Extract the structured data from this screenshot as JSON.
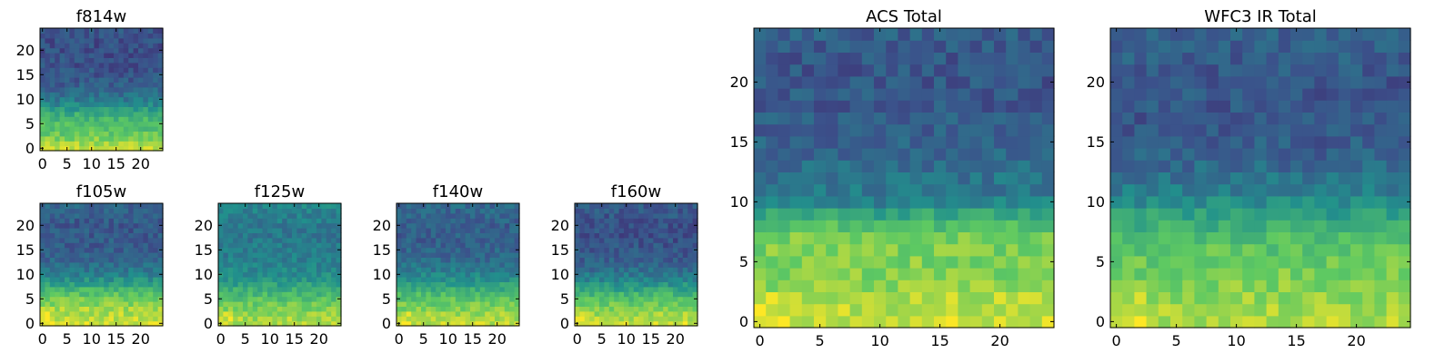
{
  "colormap": {
    "name": "viridis",
    "stops": [
      "#440154",
      "#3b528b",
      "#21918c",
      "#5ec962",
      "#fde725"
    ]
  },
  "chart_data": [
    {
      "type": "heatmap",
      "id": "f814w",
      "title": "f814w",
      "size": 25,
      "xticks": [
        0,
        5,
        10,
        15,
        20
      ],
      "yticks": [
        0,
        5,
        10,
        15,
        20
      ],
      "profile": [
        0.92,
        0.86,
        0.8,
        0.75,
        0.72,
        0.7,
        0.66,
        0.62,
        0.55,
        0.46,
        0.4,
        0.36,
        0.33,
        0.3,
        0.28,
        0.27,
        0.26,
        0.25,
        0.25,
        0.24,
        0.24,
        0.24,
        0.24,
        0.25,
        0.26
      ],
      "seed": 11
    },
    {
      "type": "heatmap",
      "id": "f105w",
      "title": "f105w",
      "size": 25,
      "xticks": [
        0,
        5,
        10,
        15,
        20
      ],
      "yticks": [
        0,
        5,
        10,
        15,
        20
      ],
      "profile": [
        0.93,
        0.9,
        0.88,
        0.86,
        0.82,
        0.78,
        0.72,
        0.66,
        0.58,
        0.5,
        0.44,
        0.4,
        0.36,
        0.33,
        0.31,
        0.3,
        0.29,
        0.29,
        0.28,
        0.28,
        0.28,
        0.29,
        0.3,
        0.31,
        0.32
      ],
      "seed": 23
    },
    {
      "type": "heatmap",
      "id": "f125w",
      "title": "f125w",
      "size": 25,
      "xticks": [
        0,
        5,
        10,
        15,
        20
      ],
      "yticks": [
        0,
        5,
        10,
        15,
        20
      ],
      "profile": [
        0.88,
        0.86,
        0.83,
        0.8,
        0.76,
        0.72,
        0.67,
        0.62,
        0.56,
        0.52,
        0.48,
        0.46,
        0.44,
        0.43,
        0.42,
        0.41,
        0.41,
        0.4,
        0.4,
        0.4,
        0.41,
        0.42,
        0.43,
        0.44,
        0.45
      ],
      "seed": 37
    },
    {
      "type": "heatmap",
      "id": "f140w",
      "title": "f140w",
      "size": 25,
      "xticks": [
        0,
        5,
        10,
        15,
        20
      ],
      "yticks": [
        0,
        5,
        10,
        15,
        20
      ],
      "profile": [
        0.9,
        0.87,
        0.84,
        0.81,
        0.77,
        0.73,
        0.68,
        0.62,
        0.56,
        0.5,
        0.45,
        0.41,
        0.38,
        0.35,
        0.33,
        0.32,
        0.31,
        0.3,
        0.3,
        0.3,
        0.3,
        0.31,
        0.32,
        0.33,
        0.34
      ],
      "seed": 41
    },
    {
      "type": "heatmap",
      "id": "f160w",
      "title": "f160w",
      "size": 25,
      "xticks": [
        0,
        5,
        10,
        15,
        20
      ],
      "yticks": [
        0,
        5,
        10,
        15,
        20
      ],
      "profile": [
        0.93,
        0.89,
        0.85,
        0.81,
        0.76,
        0.71,
        0.65,
        0.58,
        0.51,
        0.45,
        0.4,
        0.36,
        0.33,
        0.3,
        0.28,
        0.27,
        0.26,
        0.25,
        0.25,
        0.25,
        0.25,
        0.26,
        0.27,
        0.28,
        0.29
      ],
      "seed": 53
    },
    {
      "type": "heatmap",
      "id": "acs-total",
      "title": "ACS Total",
      "size": 25,
      "xticks": [
        0,
        5,
        10,
        15,
        20
      ],
      "yticks": [
        0,
        5,
        10,
        15,
        20
      ],
      "profile": [
        0.92,
        0.9,
        0.88,
        0.82,
        0.8,
        0.8,
        0.79,
        0.79,
        0.7,
        0.58,
        0.44,
        0.4,
        0.38,
        0.36,
        0.33,
        0.32,
        0.3,
        0.3,
        0.28,
        0.28,
        0.27,
        0.27,
        0.27,
        0.28,
        0.3
      ],
      "seed": 67
    },
    {
      "type": "heatmap",
      "id": "wfc3-ir-total",
      "title": "WFC3 IR Total",
      "size": 25,
      "xticks": [
        0,
        5,
        10,
        15,
        20
      ],
      "yticks": [
        0,
        5,
        10,
        15,
        20
      ],
      "profile": [
        0.88,
        0.86,
        0.83,
        0.8,
        0.78,
        0.76,
        0.73,
        0.7,
        0.64,
        0.56,
        0.48,
        0.42,
        0.38,
        0.34,
        0.31,
        0.29,
        0.28,
        0.27,
        0.27,
        0.27,
        0.27,
        0.28,
        0.29,
        0.3,
        0.31
      ],
      "seed": 79
    }
  ]
}
